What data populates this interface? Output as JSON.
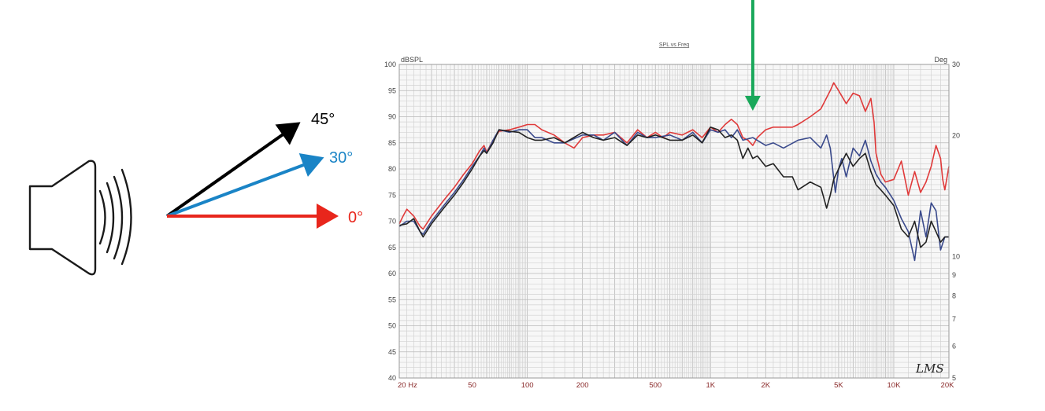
{
  "colors": {
    "on_axis": "#e8261c",
    "deg30": "#1a84c6",
    "deg45": "#000000",
    "curve_0": "#e03a3a",
    "curve_30": "#3a4a8c",
    "curve_45": "#222222",
    "marker": "#19a85a",
    "speaker_stroke": "#1a1a1a"
  },
  "diagram": {
    "speaker_icon": "speaker-with-sound-waves",
    "angles": [
      {
        "label": "45°",
        "color": "#000000"
      },
      {
        "label": "30°",
        "color": "#1a84c6"
      },
      {
        "label": "0°",
        "color": "#e8261c"
      }
    ]
  },
  "marker": {
    "icon": "arrow-down",
    "x_value": 1700
  },
  "chart_data": {
    "type": "line",
    "title": "SPL vs Freq",
    "ylabel": "dBSPL",
    "ylabel_right": "Deg",
    "logo": "LMS",
    "x_scale": "log",
    "xlim": [
      20,
      20000
    ],
    "ylim": [
      40,
      100
    ],
    "y2lim": [
      5,
      30
    ],
    "grid": true,
    "x_tick_labels": [
      {
        "v": 20,
        "t": "20  Hz"
      },
      {
        "v": 50,
        "t": "50"
      },
      {
        "v": 100,
        "t": "100"
      },
      {
        "v": 200,
        "t": "200"
      },
      {
        "v": 500,
        "t": "500"
      },
      {
        "v": 1000,
        "t": "1K"
      },
      {
        "v": 2000,
        "t": "2K"
      },
      {
        "v": 5000,
        "t": "5K"
      },
      {
        "v": 10000,
        "t": "10K"
      },
      {
        "v": 20000,
        "t": "20K"
      }
    ],
    "y_ticks": [
      100,
      95,
      90,
      85,
      80,
      75,
      70,
      65,
      60,
      55,
      50,
      45,
      40
    ],
    "y2_ticks": [
      30,
      20,
      10,
      9,
      8,
      7,
      6,
      5
    ],
    "series": [
      {
        "name": "0°",
        "color": "#e03a3a",
        "points": [
          [
            20,
            69.5
          ],
          [
            21,
            71
          ],
          [
            22,
            72.3
          ],
          [
            24,
            71
          ],
          [
            26,
            69
          ],
          [
            27,
            68.5
          ],
          [
            30,
            71
          ],
          [
            35,
            74
          ],
          [
            40,
            76.5
          ],
          [
            45,
            79
          ],
          [
            50,
            81
          ],
          [
            55,
            83.5
          ],
          [
            58,
            84.5
          ],
          [
            60,
            83.2
          ],
          [
            65,
            85.5
          ],
          [
            70,
            87.2
          ],
          [
            80,
            87.5
          ],
          [
            90,
            88
          ],
          [
            100,
            88.5
          ],
          [
            110,
            88.5
          ],
          [
            120,
            87.5
          ],
          [
            140,
            86.5
          ],
          [
            160,
            85
          ],
          [
            180,
            84
          ],
          [
            200,
            86
          ],
          [
            230,
            86.5
          ],
          [
            260,
            86.5
          ],
          [
            300,
            87
          ],
          [
            350,
            85
          ],
          [
            400,
            87.5
          ],
          [
            450,
            86
          ],
          [
            500,
            87
          ],
          [
            550,
            86
          ],
          [
            600,
            87
          ],
          [
            700,
            86.5
          ],
          [
            800,
            87.5
          ],
          [
            900,
            86
          ],
          [
            1000,
            88
          ],
          [
            1100,
            87
          ],
          [
            1200,
            88.5
          ],
          [
            1300,
            89.5
          ],
          [
            1400,
            88.5
          ],
          [
            1500,
            86
          ],
          [
            1600,
            85.5
          ],
          [
            1700,
            84.5
          ],
          [
            1800,
            86
          ],
          [
            2000,
            87.5
          ],
          [
            2200,
            88
          ],
          [
            2500,
            88
          ],
          [
            2800,
            88
          ],
          [
            3000,
            88.5
          ],
          [
            3500,
            90
          ],
          [
            4000,
            91.5
          ],
          [
            4500,
            95
          ],
          [
            4700,
            96.5
          ],
          [
            5000,
            95
          ],
          [
            5500,
            92.5
          ],
          [
            6000,
            94.5
          ],
          [
            6500,
            94
          ],
          [
            7000,
            91
          ],
          [
            7500,
            93.5
          ],
          [
            7800,
            89
          ],
          [
            8000,
            83
          ],
          [
            8500,
            79
          ],
          [
            9000,
            77.5
          ],
          [
            10000,
            78
          ],
          [
            11000,
            81.5
          ],
          [
            12000,
            75
          ],
          [
            13000,
            79.5
          ],
          [
            14000,
            75.5
          ],
          [
            15000,
            77.5
          ],
          [
            16000,
            80.5
          ],
          [
            17000,
            84.5
          ],
          [
            18000,
            82
          ],
          [
            18500,
            78
          ],
          [
            19000,
            76
          ],
          [
            20000,
            80.5
          ]
        ]
      },
      {
        "name": "30°",
        "color": "#3a4a8c",
        "points": [
          [
            20,
            69
          ],
          [
            22,
            70
          ],
          [
            24,
            70
          ],
          [
            26,
            68
          ],
          [
            27,
            67.5
          ],
          [
            30,
            70
          ],
          [
            35,
            73
          ],
          [
            40,
            75.5
          ],
          [
            45,
            78
          ],
          [
            50,
            80.5
          ],
          [
            55,
            82.5
          ],
          [
            58,
            84
          ],
          [
            60,
            83
          ],
          [
            65,
            85.5
          ],
          [
            70,
            87.5
          ],
          [
            80,
            87
          ],
          [
            90,
            87.5
          ],
          [
            100,
            87.5
          ],
          [
            110,
            86
          ],
          [
            120,
            86
          ],
          [
            140,
            85
          ],
          [
            160,
            85
          ],
          [
            200,
            86.5
          ],
          [
            230,
            86.5
          ],
          [
            260,
            85.5
          ],
          [
            300,
            87
          ],
          [
            350,
            84.5
          ],
          [
            400,
            87
          ],
          [
            450,
            86
          ],
          [
            500,
            86
          ],
          [
            600,
            86.5
          ],
          [
            700,
            85.5
          ],
          [
            800,
            87
          ],
          [
            900,
            85
          ],
          [
            1000,
            87.5
          ],
          [
            1100,
            87
          ],
          [
            1200,
            87.5
          ],
          [
            1300,
            86
          ],
          [
            1400,
            87.5
          ],
          [
            1500,
            85.5
          ],
          [
            1700,
            86
          ],
          [
            2000,
            84.5
          ],
          [
            2200,
            85
          ],
          [
            2500,
            84
          ],
          [
            3000,
            85.5
          ],
          [
            3500,
            86
          ],
          [
            4000,
            84
          ],
          [
            4300,
            86.5
          ],
          [
            4500,
            84
          ],
          [
            4800,
            75.5
          ],
          [
            5000,
            80
          ],
          [
            5200,
            82
          ],
          [
            5500,
            78.5
          ],
          [
            6000,
            84
          ],
          [
            6500,
            82.5
          ],
          [
            7000,
            85.5
          ],
          [
            7500,
            81.5
          ],
          [
            8000,
            79
          ],
          [
            8500,
            77.5
          ],
          [
            9000,
            76.5
          ],
          [
            10000,
            74
          ],
          [
            11000,
            70.5
          ],
          [
            12000,
            68
          ],
          [
            13000,
            62.5
          ],
          [
            14000,
            72
          ],
          [
            15000,
            67
          ],
          [
            16000,
            73.5
          ],
          [
            17000,
            72
          ],
          [
            18000,
            64.5
          ],
          [
            19000,
            67
          ],
          [
            20000,
            67
          ]
        ]
      },
      {
        "name": "45°",
        "color": "#222222",
        "points": [
          [
            20,
            69.2
          ],
          [
            22,
            69.5
          ],
          [
            24,
            70.5
          ],
          [
            26,
            68
          ],
          [
            27,
            67
          ],
          [
            30,
            69.5
          ],
          [
            35,
            72.5
          ],
          [
            40,
            75
          ],
          [
            45,
            77.5
          ],
          [
            50,
            80
          ],
          [
            55,
            82.5
          ],
          [
            58,
            83.5
          ],
          [
            60,
            83
          ],
          [
            65,
            85
          ],
          [
            70,
            87.5
          ],
          [
            80,
            87.2
          ],
          [
            90,
            87
          ],
          [
            100,
            86
          ],
          [
            110,
            85.5
          ],
          [
            120,
            85.5
          ],
          [
            140,
            86
          ],
          [
            160,
            85
          ],
          [
            200,
            87
          ],
          [
            230,
            86
          ],
          [
            260,
            85.5
          ],
          [
            300,
            86
          ],
          [
            350,
            84.5
          ],
          [
            400,
            86.5
          ],
          [
            450,
            86
          ],
          [
            500,
            86.5
          ],
          [
            600,
            85.5
          ],
          [
            700,
            85.5
          ],
          [
            800,
            86.5
          ],
          [
            900,
            85
          ],
          [
            1000,
            88
          ],
          [
            1100,
            87.5
          ],
          [
            1200,
            86
          ],
          [
            1300,
            86.5
          ],
          [
            1400,
            85.5
          ],
          [
            1500,
            82
          ],
          [
            1600,
            84
          ],
          [
            1700,
            82
          ],
          [
            1800,
            82.5
          ],
          [
            2000,
            80.5
          ],
          [
            2200,
            81
          ],
          [
            2500,
            78.5
          ],
          [
            2800,
            78.5
          ],
          [
            3000,
            76
          ],
          [
            3500,
            77.5
          ],
          [
            4000,
            76.5
          ],
          [
            4300,
            72.5
          ],
          [
            4500,
            75
          ],
          [
            4700,
            78
          ],
          [
            5000,
            80
          ],
          [
            5500,
            83
          ],
          [
            6000,
            80.5
          ],
          [
            6500,
            82
          ],
          [
            7000,
            83
          ],
          [
            7500,
            79.5
          ],
          [
            8000,
            77
          ],
          [
            8500,
            76
          ],
          [
            9000,
            75
          ],
          [
            10000,
            73
          ],
          [
            11000,
            68.5
          ],
          [
            12000,
            67
          ],
          [
            13000,
            70
          ],
          [
            14000,
            65
          ],
          [
            15000,
            66
          ],
          [
            16000,
            70
          ],
          [
            17000,
            68
          ],
          [
            18000,
            66
          ],
          [
            19000,
            67
          ],
          [
            20000,
            67
          ]
        ]
      }
    ]
  }
}
